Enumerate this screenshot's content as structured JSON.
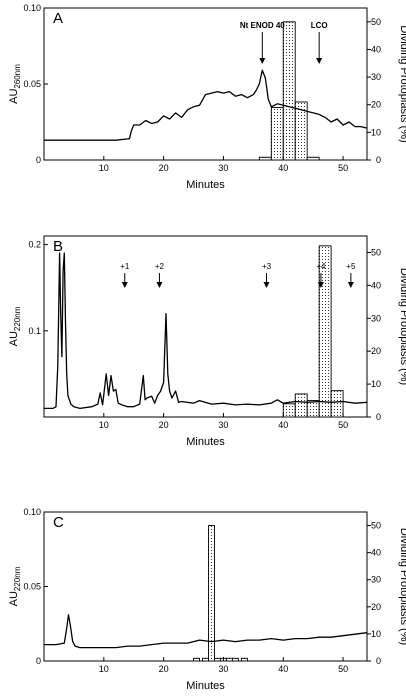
{
  "chart_data": [
    {
      "panel": "A",
      "type": "line",
      "xlabel": "Minutes",
      "ylabel_left": "AU",
      "ylabel_left_sub": "260nm",
      "ylabel_right": "Dividing Protoplasts (%)",
      "xlim": [
        0,
        54
      ],
      "ylim_left": [
        0,
        0.1
      ],
      "ylim_right": [
        0,
        55
      ],
      "x_ticks": [
        10,
        20,
        30,
        40,
        50
      ],
      "y_ticks_left": [
        0,
        0.05,
        0.1
      ],
      "y_tick_labels_left": [
        "0",
        "0.05",
        "0.10"
      ],
      "y_ticks_right": [
        0,
        10,
        20,
        30,
        40,
        50
      ],
      "trace": {
        "x": [
          0,
          3,
          6,
          9,
          12,
          14.3,
          14.6,
          15,
          16,
          17,
          18,
          19,
          20,
          21,
          22,
          23,
          24,
          25,
          26,
          27,
          28,
          29,
          30,
          31,
          32,
          33,
          34,
          35,
          35.5,
          36,
          36.5,
          37,
          37.5,
          38,
          39,
          40,
          41,
          42,
          43,
          44,
          45,
          46,
          47,
          48,
          49,
          50,
          51,
          52,
          53,
          54
        ],
        "y": [
          0.013,
          0.013,
          0.013,
          0.013,
          0.013,
          0.014,
          0.019,
          0.023,
          0.023,
          0.026,
          0.024,
          0.025,
          0.029,
          0.027,
          0.031,
          0.028,
          0.033,
          0.035,
          0.036,
          0.043,
          0.044,
          0.045,
          0.044,
          0.045,
          0.042,
          0.043,
          0.041,
          0.043,
          0.046,
          0.05,
          0.059,
          0.054,
          0.04,
          0.035,
          0.037,
          0.036,
          0.035,
          0.034,
          0.033,
          0.032,
          0.031,
          0.03,
          0.028,
          0.025,
          0.027,
          0.023,
          0.025,
          0.022,
          0.022,
          0.021
        ]
      },
      "bars": {
        "x": [
          37,
          39,
          41,
          43,
          45
        ],
        "width": 2,
        "values": [
          1,
          19,
          50,
          21,
          1
        ]
      },
      "annotations": [
        {
          "text": "Nt ENOD 40",
          "x": 36.5,
          "bold": true
        },
        {
          "text": "LCO",
          "x": 46,
          "bold": true
        }
      ]
    },
    {
      "panel": "B",
      "type": "line",
      "xlabel": "Minutes",
      "ylabel_left": "AU",
      "ylabel_left_sub": "220nm",
      "ylabel_right": "Dividing Protoplasts (%)",
      "xlim": [
        0,
        54
      ],
      "ylim_left": [
        0,
        0.21
      ],
      "ylim_right": [
        0,
        55
      ],
      "x_ticks": [
        10,
        20,
        30,
        40,
        50
      ],
      "y_ticks_left": [
        0.1,
        0.2
      ],
      "y_tick_labels_left": [
        "0.1",
        "0.2"
      ],
      "y_ticks_right": [
        0,
        10,
        20,
        30,
        40,
        50
      ],
      "trace": {
        "x": [
          0,
          1.5,
          2,
          2.3,
          2.6,
          2.8,
          3.0,
          3.2,
          3.4,
          3.6,
          3.8,
          4.0,
          4.5,
          5,
          6,
          8,
          9,
          9.4,
          9.8,
          10.4,
          10.8,
          11.2,
          11.6,
          12.0,
          12.4,
          13,
          14,
          15,
          16,
          16.6,
          16.9,
          17.2,
          18,
          18.5,
          19,
          19.5,
          20,
          20.4,
          20.7,
          21.0,
          21.4,
          22,
          22.5,
          23,
          25,
          26,
          28,
          30,
          32,
          34,
          36,
          38,
          39,
          40,
          42,
          44,
          46,
          48,
          50,
          52,
          54
        ],
        "y": [
          0.01,
          0.01,
          0.012,
          0.06,
          0.19,
          0.12,
          0.07,
          0.17,
          0.19,
          0.11,
          0.05,
          0.025,
          0.015,
          0.012,
          0.01,
          0.012,
          0.015,
          0.028,
          0.014,
          0.05,
          0.025,
          0.048,
          0.03,
          0.032,
          0.016,
          0.014,
          0.012,
          0.012,
          0.015,
          0.048,
          0.02,
          0.022,
          0.024,
          0.016,
          0.025,
          0.03,
          0.04,
          0.12,
          0.05,
          0.03,
          0.022,
          0.03,
          0.017,
          0.018,
          0.016,
          0.019,
          0.015,
          0.016,
          0.014,
          0.015,
          0.014,
          0.016,
          0.02,
          0.016,
          0.018,
          0.017,
          0.018,
          0.017,
          0.018,
          0.016,
          0.017
        ]
      },
      "bars": {
        "x": [
          41,
          43,
          45,
          47,
          49
        ],
        "width": 2,
        "values": [
          4,
          7,
          5,
          52,
          8
        ]
      },
      "annotations": [
        {
          "text": "+1",
          "x": 13.5,
          "bold": false
        },
        {
          "text": "+2",
          "x": 19.3,
          "bold": false
        },
        {
          "text": "+3",
          "x": 37.2,
          "bold": false
        },
        {
          "text": "+4",
          "x": 46.3,
          "bold": false
        },
        {
          "text": "+5",
          "x": 51.3,
          "bold": false
        }
      ]
    },
    {
      "panel": "C",
      "type": "line",
      "xlabel": "Minutes",
      "ylabel_left": "AU",
      "ylabel_left_sub": "220nm",
      "ylabel_right": "Dividing Protoplasts (%)",
      "xlim": [
        0,
        54
      ],
      "ylim_left": [
        0,
        0.1
      ],
      "ylim_right": [
        0,
        55
      ],
      "x_ticks": [
        10,
        20,
        30,
        40,
        50
      ],
      "y_ticks_left": [
        0,
        0.05,
        0.1
      ],
      "y_tick_labels_left": [
        "0",
        "0.05",
        "0.10"
      ],
      "y_ticks_right": [
        0,
        10,
        20,
        30,
        40,
        50
      ],
      "trace": {
        "x": [
          0,
          2,
          3.4,
          3.8,
          4.1,
          4.4,
          4.8,
          5.2,
          6,
          8,
          10,
          12,
          14,
          16,
          18,
          20,
          22,
          24,
          26,
          28,
          30,
          32,
          34,
          36,
          38,
          40,
          42,
          44,
          46,
          48,
          50,
          52,
          54
        ],
        "y": [
          0.011,
          0.011,
          0.012,
          0.022,
          0.031,
          0.024,
          0.013,
          0.01,
          0.009,
          0.009,
          0.009,
          0.009,
          0.01,
          0.01,
          0.011,
          0.012,
          0.012,
          0.012,
          0.014,
          0.013,
          0.014,
          0.013,
          0.014,
          0.014,
          0.015,
          0.014,
          0.015,
          0.015,
          0.016,
          0.016,
          0.017,
          0.018,
          0.019
        ]
      },
      "bars": {
        "x": [
          25.5,
          27,
          28,
          29,
          30,
          31,
          32,
          33.5
        ],
        "width": 1,
        "values": [
          1,
          1,
          50,
          1,
          1,
          1,
          1,
          1
        ]
      },
      "annotations": []
    }
  ]
}
